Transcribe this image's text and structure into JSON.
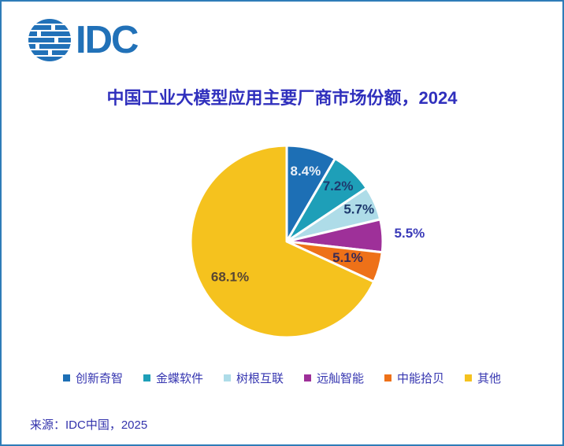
{
  "logo": {
    "text": "IDC",
    "color": "#2171b8"
  },
  "title": {
    "text": "中国工业大模型应用主要厂商市场份额，2024",
    "color": "#3030bd"
  },
  "source": {
    "text": "来源：IDC中国，2025"
  },
  "chart_data": {
    "type": "pie",
    "title": "中国工业大模型应用主要厂商市场份额，2024",
    "categories": [
      "创新奇智",
      "金蝶软件",
      "树根互联",
      "远舢智能",
      "中能拾贝",
      "其他"
    ],
    "values": [
      8.4,
      7.2,
      5.7,
      5.5,
      5.1,
      68.1
    ],
    "labels": [
      "8.4%",
      "7.2%",
      "5.7%",
      "5.5%",
      "5.1%",
      "68.1%"
    ],
    "colors": [
      "#1d6fb5",
      "#1e9fb8",
      "#aedce8",
      "#9e3099",
      "#ee7118",
      "#f5c21e"
    ],
    "label_colors": [
      "#e9eff7",
      "#1e3a6e",
      "#1e3a6e",
      "#3a3ab8",
      "#3a2b55",
      "#584633"
    ],
    "label_radius": [
      0.75,
      0.78,
      0.82,
      1.28,
      0.66,
      0.7
    ],
    "start_angle_deg": 0,
    "direction": "clockwise",
    "slice_gap_color": "#ffffff",
    "legend_position": "bottom",
    "donut": false
  }
}
